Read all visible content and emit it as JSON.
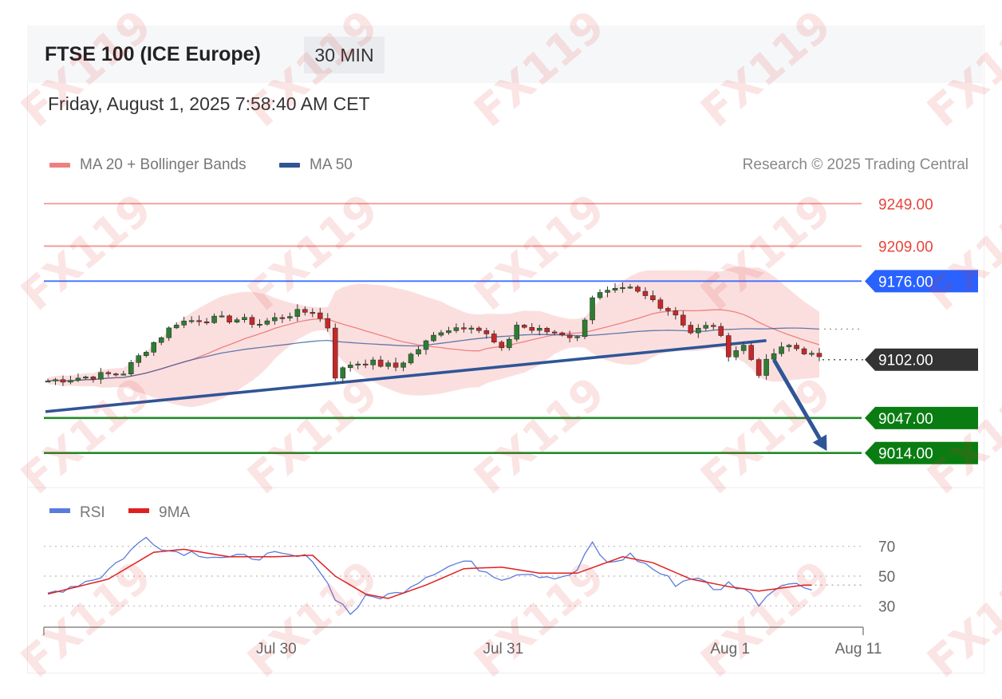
{
  "header": {
    "title": "FTSE 100 (ICE Europe)",
    "timeframe": "30 MIN",
    "datetime": "Friday, August 1, 2025 7:58:40 AM CET"
  },
  "legend": {
    "ma20": {
      "label": "MA 20 + Bollinger Bands",
      "color": "#f08080"
    },
    "ma50": {
      "label": "MA 50",
      "color": "#2f5597"
    },
    "credit": "Research © 2025 Trading Central"
  },
  "watermark": "FX119",
  "chart_data": [
    {
      "type": "candlestick",
      "x_tick_labels": [
        "Jul 30",
        "Jul 31",
        "Aug 1",
        "Aug 11"
      ],
      "x_ticks_at_bar": [
        30,
        60,
        90,
        100
      ],
      "ylim": [
        8995,
        9265
      ],
      "levels": [
        {
          "label": "9249.00",
          "value": 9249,
          "kind": "resistance",
          "color": "#e8443a"
        },
        {
          "label": "9209.00",
          "value": 9209,
          "kind": "resistance",
          "color": "#e8443a"
        },
        {
          "label": "9176.00",
          "value": 9176,
          "kind": "pivot",
          "color": "#2962ff"
        },
        {
          "label": "9102.00",
          "value": 9102,
          "kind": "last",
          "color": "#333333"
        },
        {
          "label": "9047.00",
          "value": 9047,
          "kind": "support",
          "color": "#0a7d12"
        },
        {
          "label": "9014.00",
          "value": 9014,
          "kind": "support",
          "color": "#0a7d12"
        }
      ],
      "trendline": {
        "from": [
          0,
          9053
        ],
        "to": [
          95,
          9120
        ]
      },
      "projection_arrow": {
        "from": [
          96,
          9102
        ],
        "to": [
          103,
          9016
        ]
      },
      "anchors": [
        [
          0,
          9082
        ],
        [
          8,
          9088
        ],
        [
          10,
          9090
        ],
        [
          13,
          9112
        ],
        [
          17,
          9137
        ],
        [
          20,
          9140
        ],
        [
          25,
          9140
        ],
        [
          28,
          9136
        ],
        [
          32,
          9145
        ],
        [
          35,
          9148
        ],
        [
          37,
          9133
        ],
        [
          38,
          9087
        ],
        [
          40,
          9098
        ],
        [
          42,
          9100
        ],
        [
          46,
          9095
        ],
        [
          50,
          9118
        ],
        [
          52,
          9130
        ],
        [
          56,
          9135
        ],
        [
          58,
          9125
        ],
        [
          60,
          9110
        ],
        [
          62,
          9135
        ],
        [
          64,
          9130
        ],
        [
          68,
          9127
        ],
        [
          70,
          9122
        ],
        [
          72,
          9162
        ],
        [
          74,
          9165
        ],
        [
          77,
          9168
        ],
        [
          80,
          9158
        ],
        [
          83,
          9145
        ],
        [
          85,
          9128
        ],
        [
          88,
          9135
        ],
        [
          90,
          9108
        ],
        [
          92,
          9115
        ],
        [
          94,
          9090
        ],
        [
          96,
          9108
        ],
        [
          98,
          9115
        ],
        [
          100,
          9110
        ],
        [
          102,
          9102
        ]
      ],
      "rsi": {
        "labels": [
          "RSI",
          "9MA"
        ],
        "colors": [
          "#5b7bdb",
          "#e02020"
        ],
        "ylim": [
          20,
          80
        ],
        "guides": [
          70,
          50,
          30
        ],
        "tick_labels": [
          "70",
          "50",
          "30"
        ],
        "rsi_anchors": [
          [
            0,
            38
          ],
          [
            7,
            50
          ],
          [
            13,
            76
          ],
          [
            16,
            67
          ],
          [
            19,
            66
          ],
          [
            24,
            62
          ],
          [
            30,
            64
          ],
          [
            35,
            62
          ],
          [
            38,
            36
          ],
          [
            40,
            25
          ],
          [
            42,
            35
          ],
          [
            46,
            38
          ],
          [
            51,
            53
          ],
          [
            55,
            60
          ],
          [
            60,
            49
          ],
          [
            63,
            53
          ],
          [
            68,
            48
          ],
          [
            70,
            54
          ],
          [
            72,
            72
          ],
          [
            74,
            58
          ],
          [
            77,
            64
          ],
          [
            80,
            55
          ],
          [
            83,
            45
          ],
          [
            86,
            50
          ],
          [
            88,
            40
          ],
          [
            90,
            45
          ],
          [
            92,
            42
          ],
          [
            94,
            32
          ],
          [
            97,
            46
          ],
          [
            100,
            43
          ]
        ],
        "ma_anchors": [
          [
            0,
            38
          ],
          [
            8,
            48
          ],
          [
            14,
            66
          ],
          [
            18,
            68
          ],
          [
            24,
            63
          ],
          [
            30,
            63
          ],
          [
            35,
            64
          ],
          [
            38,
            50
          ],
          [
            42,
            38
          ],
          [
            45,
            35
          ],
          [
            50,
            44
          ],
          [
            55,
            55
          ],
          [
            60,
            56
          ],
          [
            65,
            52
          ],
          [
            70,
            52
          ],
          [
            76,
            63
          ],
          [
            80,
            59
          ],
          [
            85,
            48
          ],
          [
            90,
            43
          ],
          [
            94,
            40
          ],
          [
            97,
            42
          ],
          [
            100,
            44
          ]
        ]
      }
    }
  ]
}
